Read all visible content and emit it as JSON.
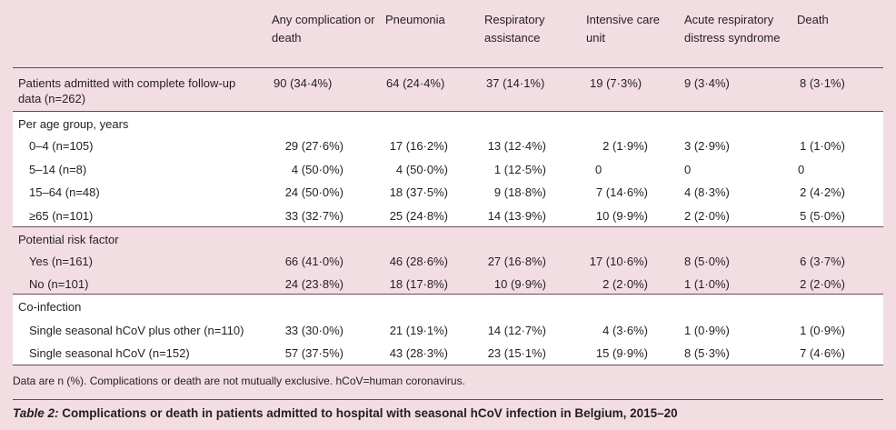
{
  "headers": {
    "col1": "Any complication or death",
    "col2": "Pneumonia",
    "col3": "Respiratory assistance",
    "col4": "Intensive care unit",
    "col5": "Acute respiratory distress syndrome",
    "col6": "Death"
  },
  "rows": {
    "total": {
      "label_line1": "Patients admitted with complete follow-up",
      "label_line2": "data (n=262)",
      "v1": "90 (34·4%)",
      "v2": "64 (24·4%)",
      "v3": "37 (14·1%)",
      "v4": "19 (7·3%)",
      "v5": "9 (3·4%)",
      "v6": "8 (3·1%)"
    },
    "age_section": "Per age group, years",
    "age_0_4": {
      "label": "0–4 (n=105)",
      "v1": "29 (27·6%)",
      "v2": "17 (16·2%)",
      "v3": "13 (12·4%)",
      "v4": "2 (1·9%)",
      "v5": "3 (2·9%)",
      "v6": "1 (1·0%)"
    },
    "age_5_14": {
      "label": "5–14 (n=8)",
      "v1": "4 (50·0%)",
      "v2": "4 (50·0%)",
      "v3": "1 (12·5%)",
      "v4": "0",
      "v5": "0",
      "v6": "0"
    },
    "age_15_64": {
      "label": "15–64 (n=48)",
      "v1": "24 (50·0%)",
      "v2": "18 (37·5%)",
      "v3": "9 (18·8%)",
      "v4": "7 (14·6%)",
      "v5": "4 (8·3%)",
      "v6": "2 (4·2%)"
    },
    "age_65": {
      "label": "≥65 (n=101)",
      "v1": "33 (32·7%)",
      "v2": "25 (24·8%)",
      "v3": "14 (13·9%)",
      "v4": "10 (9·9%)",
      "v5": "2 (2·0%)",
      "v6": "5 (5·0%)"
    },
    "risk_section": "Potential risk factor",
    "risk_yes": {
      "label": "Yes (n=161)",
      "v1": "66 (41·0%)",
      "v2": "46 (28·6%)",
      "v3": "27 (16·8%)",
      "v4": "17 (10·6%)",
      "v5": "8 (5·0%)",
      "v6": "6 (3·7%)"
    },
    "risk_no": {
      "label": "No (n=101)",
      "v1": "24 (23·8%)",
      "v2": "18 (17·8%)",
      "v3": "10 (9·9%)",
      "v4": "2 (2·0%)",
      "v5": "1 (1·0%)",
      "v6": "2 (2·0%)"
    },
    "coinf_section": "Co-infection",
    "coinf_other": {
      "label": "Single seasonal hCoV plus other (n=110)",
      "v1": "33 (30·0%)",
      "v2": "21 (19·1%)",
      "v3": "14 (12·7%)",
      "v4": "4 (3·6%)",
      "v5": "1 (0·9%)",
      "v6": "1 (0·9%)"
    },
    "coinf_single": {
      "label": "Single seasonal hCoV (n=152)",
      "v1": "57 (37·5%)",
      "v2": "43 (28·3%)",
      "v3": "23 (15·1%)",
      "v4": "15 (9·9%)",
      "v5": "8 (5·3%)",
      "v6": "7 (4·6%)"
    }
  },
  "footnote": "Data are n (%). Complications or death are not mutually exclusive. hCoV=human coronavirus.",
  "caption": {
    "label": "Table 2:",
    "text": " Complications or death in patients admitted to hospital with seasonal hCoV infection in Belgium, 2015–20"
  },
  "colors": {
    "background": "#f2dde3",
    "band": "#ffffff",
    "text": "#231f20",
    "rule": "#6b4b53"
  }
}
